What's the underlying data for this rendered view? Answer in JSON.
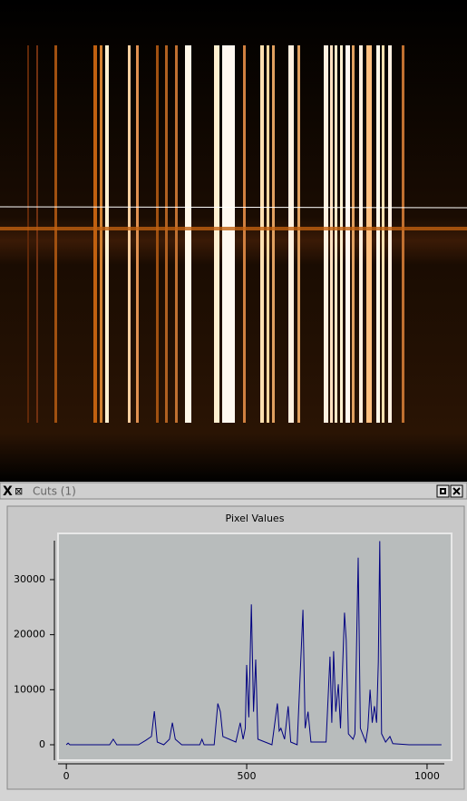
{
  "window": {
    "title": "Cuts (1)"
  },
  "chart_data": {
    "type": "line",
    "title": "Pixel Values",
    "x": [
      0,
      5,
      10,
      120,
      130,
      140,
      200,
      220,
      236,
      244,
      252,
      270,
      286,
      294,
      302,
      320,
      370,
      376,
      382,
      410,
      420,
      427,
      434,
      470,
      482,
      490,
      496,
      500,
      506,
      513,
      519,
      525,
      531,
      570,
      585,
      590,
      595,
      605,
      615,
      622,
      640,
      656,
      662,
      670,
      678,
      720,
      731,
      736,
      741,
      747,
      754,
      760,
      771,
      776,
      782,
      795,
      800,
      809,
      815,
      830,
      836,
      842,
      848,
      854,
      860,
      865,
      869,
      874,
      885,
      897,
      905,
      950,
      1040
    ],
    "series": [
      {
        "color": "#000080",
        "values": [
          0,
          300,
          0,
          0,
          1000,
          0,
          0,
          800,
          1500,
          6100,
          500,
          0,
          1000,
          4000,
          1000,
          0,
          0,
          1000,
          0,
          0,
          7500,
          6000,
          1500,
          500,
          4000,
          1000,
          3000,
          14500,
          5000,
          25500,
          6000,
          15500,
          1000,
          0,
          7500,
          2500,
          3000,
          1000,
          7000,
          500,
          0,
          24500,
          3000,
          6000,
          500,
          500,
          16000,
          4000,
          17000,
          6000,
          11000,
          3000,
          24000,
          19000,
          2000,
          1000,
          2000,
          34000,
          3000,
          500,
          3000,
          10000,
          4000,
          7000,
          4000,
          15000,
          37000,
          2000,
          500,
          1500,
          200,
          0,
          0
        ]
      }
    ],
    "xlim": [
      -23,
      1068
    ],
    "ylim": [
      -2800,
      38400
    ],
    "xticks": [
      0,
      500,
      1000
    ],
    "yticks": [
      0,
      10000,
      20000,
      30000
    ]
  }
}
